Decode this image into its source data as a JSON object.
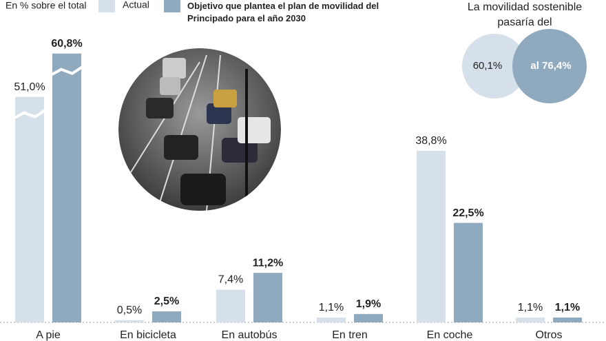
{
  "chart_data": {
    "type": "bar",
    "subtitle": "En % sobre el total",
    "categories": [
      "A pie",
      "En bicicleta",
      "En autobús",
      "En tren",
      "En coche",
      "Otros"
    ],
    "series": [
      {
        "name": "Actual",
        "color": "#d5e0ea",
        "values": [
          51.0,
          0.5,
          7.4,
          1.1,
          38.8,
          1.1
        ],
        "value_labels": [
          "51,0%",
          "0,5%",
          "7,4%",
          "1,1%",
          "38,8%",
          "1,1%"
        ]
      },
      {
        "name": "Objetivo que plantea el plan de movilidad del Principado para el año 2030",
        "color": "#8fa9bf",
        "values": [
          60.8,
          2.5,
          11.2,
          1.9,
          22.5,
          1.1
        ],
        "value_labels": [
          "60,8%",
          "2,5%",
          "11,2%",
          "1,9%",
          "22,5%",
          "1,1%"
        ]
      }
    ],
    "ylim": [
      0,
      62
    ],
    "summary": {
      "title": "La movilidad sostenible pasaría del",
      "from": "60,1%",
      "to": "al 76,4%"
    }
  }
}
